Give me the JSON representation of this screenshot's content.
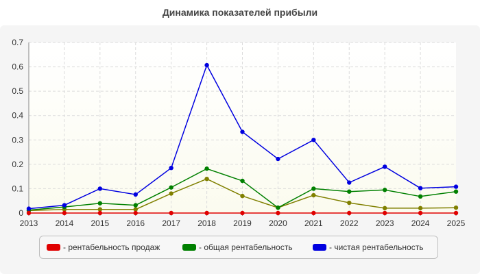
{
  "chart_data": {
    "type": "line",
    "title": "Динамика показателей прибыли",
    "xlabel": "",
    "ylabel": "",
    "x": [
      "2013",
      "2014",
      "2015",
      "2016",
      "2017",
      "2018",
      "2019",
      "2020",
      "2021",
      "2022",
      "2023",
      "2024",
      "2025"
    ],
    "ylim": [
      0,
      0.7
    ],
    "yticks": [
      "0",
      "0.1",
      "0.2",
      "0.3",
      "0.4",
      "0.5",
      "0.6",
      "0.7"
    ],
    "grid": true,
    "legend_position": "bottom",
    "series": [
      {
        "name": "- рентабельность продаж",
        "color": "#e00000",
        "values": [
          0,
          0,
          0,
          0,
          0,
          0,
          0,
          0,
          0,
          0,
          0,
          0,
          0
        ]
      },
      {
        "name": "- общая рентабельность",
        "color": "#008000",
        "values": [
          0.012,
          0.025,
          0.04,
          0.032,
          0.105,
          0.182,
          0.132,
          0.022,
          0.1,
          0.088,
          0.095,
          0.068,
          0.088
        ]
      },
      {
        "name": "- чистая рентабельность",
        "color": "#0000e0",
        "values": [
          0.018,
          0.032,
          0.1,
          0.076,
          0.185,
          0.607,
          0.333,
          0.222,
          0.3,
          0.125,
          0.19,
          0.102,
          0.108
        ]
      },
      {
        "name": "",
        "color": "#808000",
        "values": [
          0.01,
          0.015,
          0.015,
          0.015,
          0.08,
          0.14,
          0.07,
          0.022,
          0.073,
          0.042,
          0.02,
          0.02,
          0.022
        ]
      }
    ]
  }
}
